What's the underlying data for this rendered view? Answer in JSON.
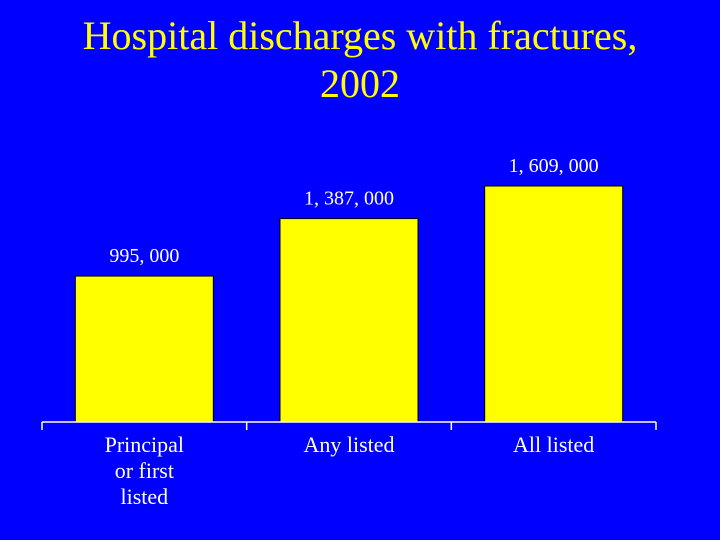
{
  "title": {
    "line1": "Hospital discharges with fractures,",
    "line2": "2002"
  },
  "colors": {
    "background": "#0000ff",
    "bar_fill": "#ffff00",
    "text": "#ffffff",
    "title_text": "#ffff00",
    "axis": "#ffffff"
  },
  "chart_data": {
    "type": "bar",
    "title": "Hospital discharges with fractures, 2002",
    "categories": [
      "Principal or first listed",
      "Any listed",
      "All listed"
    ],
    "category_lines": [
      [
        "Principal",
        "or first",
        "listed"
      ],
      [
        "Any listed"
      ],
      [
        "All listed"
      ]
    ],
    "values": [
      995000,
      1387000,
      1609000
    ],
    "value_labels": [
      "995, 000",
      "1, 387, 000",
      "1, 609, 000"
    ],
    "xlabel": "",
    "ylabel": "",
    "ylim": [
      0,
      1800000
    ],
    "grid": false,
    "legend": "none"
  }
}
